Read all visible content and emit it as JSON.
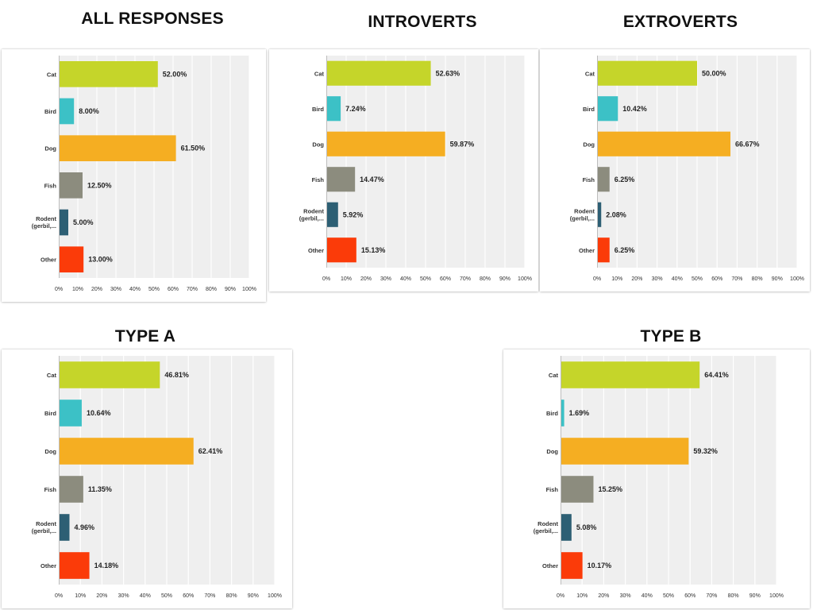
{
  "colors": {
    "Cat": "#c5d52a",
    "Bird": "#3cc1c6",
    "Dog": "#f5ae22",
    "Fish": "#8c8c7e",
    "Rodent": "#2d5f74",
    "Other": "#fb3b09",
    "plot_background": "#efefef",
    "grid": "#ffffff"
  },
  "chart_data": [
    {
      "type": "bar",
      "orientation": "horizontal",
      "title": "ALL RESPONSES",
      "categories": [
        "Cat",
        "Bird",
        "Dog",
        "Fish",
        "Rodent (gerbil,...",
        "Other"
      ],
      "values": [
        52.0,
        8.0,
        61.5,
        12.5,
        5.0,
        13.0
      ],
      "value_labels": [
        "52.00%",
        "8.00%",
        "61.50%",
        "12.50%",
        "5.00%",
        "13.00%"
      ],
      "xlim": [
        0,
        100
      ],
      "x_ticks": [
        "0%",
        "10%",
        "20%",
        "30%",
        "40%",
        "50%",
        "60%",
        "70%",
        "80%",
        "90%",
        "100%"
      ],
      "grid": true,
      "legend": "none"
    },
    {
      "type": "bar",
      "orientation": "horizontal",
      "title": "INTROVERTS",
      "categories": [
        "Cat",
        "Bird",
        "Dog",
        "Fish",
        "Rodent (gerbil,...",
        "Other"
      ],
      "values": [
        52.63,
        7.24,
        59.87,
        14.47,
        5.92,
        15.13
      ],
      "value_labels": [
        "52.63%",
        "7.24%",
        "59.87%",
        "14.47%",
        "5.92%",
        "15.13%"
      ],
      "xlim": [
        0,
        100
      ],
      "x_ticks": [
        "0%",
        "10%",
        "20%",
        "30%",
        "40%",
        "50%",
        "60%",
        "70%",
        "80%",
        "90%",
        "100%"
      ],
      "grid": true,
      "legend": "none"
    },
    {
      "type": "bar",
      "orientation": "horizontal",
      "title": "EXTROVERTS",
      "categories": [
        "Cat",
        "Bird",
        "Dog",
        "Fish",
        "Rodent (gerbil,...",
        "Other"
      ],
      "values": [
        50.0,
        10.42,
        66.67,
        6.25,
        2.08,
        6.25
      ],
      "value_labels": [
        "50.00%",
        "10.42%",
        "66.67%",
        "6.25%",
        "2.08%",
        "6.25%"
      ],
      "xlim": [
        0,
        100
      ],
      "x_ticks": [
        "0%",
        "10%",
        "20%",
        "30%",
        "40%",
        "50%",
        "60%",
        "70%",
        "80%",
        "90%",
        "100%"
      ],
      "grid": true,
      "legend": "none"
    },
    {
      "type": "bar",
      "orientation": "horizontal",
      "title": "TYPE A",
      "categories": [
        "Cat",
        "Bird",
        "Dog",
        "Fish",
        "Rodent (gerbil,...",
        "Other"
      ],
      "values": [
        46.81,
        10.64,
        62.41,
        11.35,
        4.96,
        14.18
      ],
      "value_labels": [
        "46.81%",
        "10.64%",
        "62.41%",
        "11.35%",
        "4.96%",
        "14.18%"
      ],
      "xlim": [
        0,
        100
      ],
      "x_ticks": [
        "0%",
        "10%",
        "20%",
        "30%",
        "40%",
        "50%",
        "60%",
        "70%",
        "80%",
        "90%",
        "100%"
      ],
      "grid": true,
      "legend": "none"
    },
    {
      "type": "bar",
      "orientation": "horizontal",
      "title": "TYPE B",
      "categories": [
        "Cat",
        "Bird",
        "Dog",
        "Fish",
        "Rodent (gerbil,...",
        "Other"
      ],
      "values": [
        64.41,
        1.69,
        59.32,
        15.25,
        5.08,
        10.17
      ],
      "value_labels": [
        "64.41%",
        "1.69%",
        "59.32%",
        "15.25%",
        "5.08%",
        "10.17%"
      ],
      "xlim": [
        0,
        100
      ],
      "x_ticks": [
        "0%",
        "10%",
        "20%",
        "30%",
        "40%",
        "50%",
        "60%",
        "70%",
        "80%",
        "90%",
        "100%"
      ],
      "grid": true,
      "legend": "none"
    }
  ]
}
